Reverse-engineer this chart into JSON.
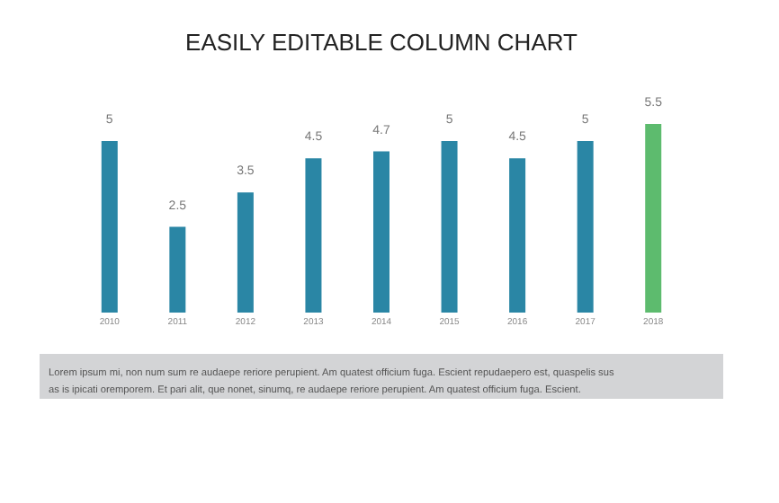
{
  "chart_data": {
    "type": "bar",
    "title": "EASILY EDITABLE COLUMN CHART",
    "categories": [
      "2010",
      "2011",
      "2012",
      "2013",
      "2014",
      "2015",
      "2016",
      "2017",
      "2018"
    ],
    "values": [
      5,
      2.5,
      3.5,
      4.5,
      4.7,
      5,
      4.5,
      5,
      5.5
    ],
    "colors": [
      "#2a86a5",
      "#2a86a5",
      "#2a86a5",
      "#2a86a5",
      "#2a86a5",
      "#2a86a5",
      "#2a86a5",
      "#2a86a5",
      "#5dbb6e"
    ],
    "ylim": [
      0,
      5.5
    ],
    "data_labels": true,
    "grid": false,
    "annotations": [
      "Lorem ipsum mi, non num sum re audaepe reriore perupient. Am quatest officium fuga. Escient repudaepero est, quaspelis sus as is ipicati oremporem. Et pari alit, que nonet, sinumq, re audaepe reriore perupient. Am quatest officium fuga. Escient."
    ]
  }
}
